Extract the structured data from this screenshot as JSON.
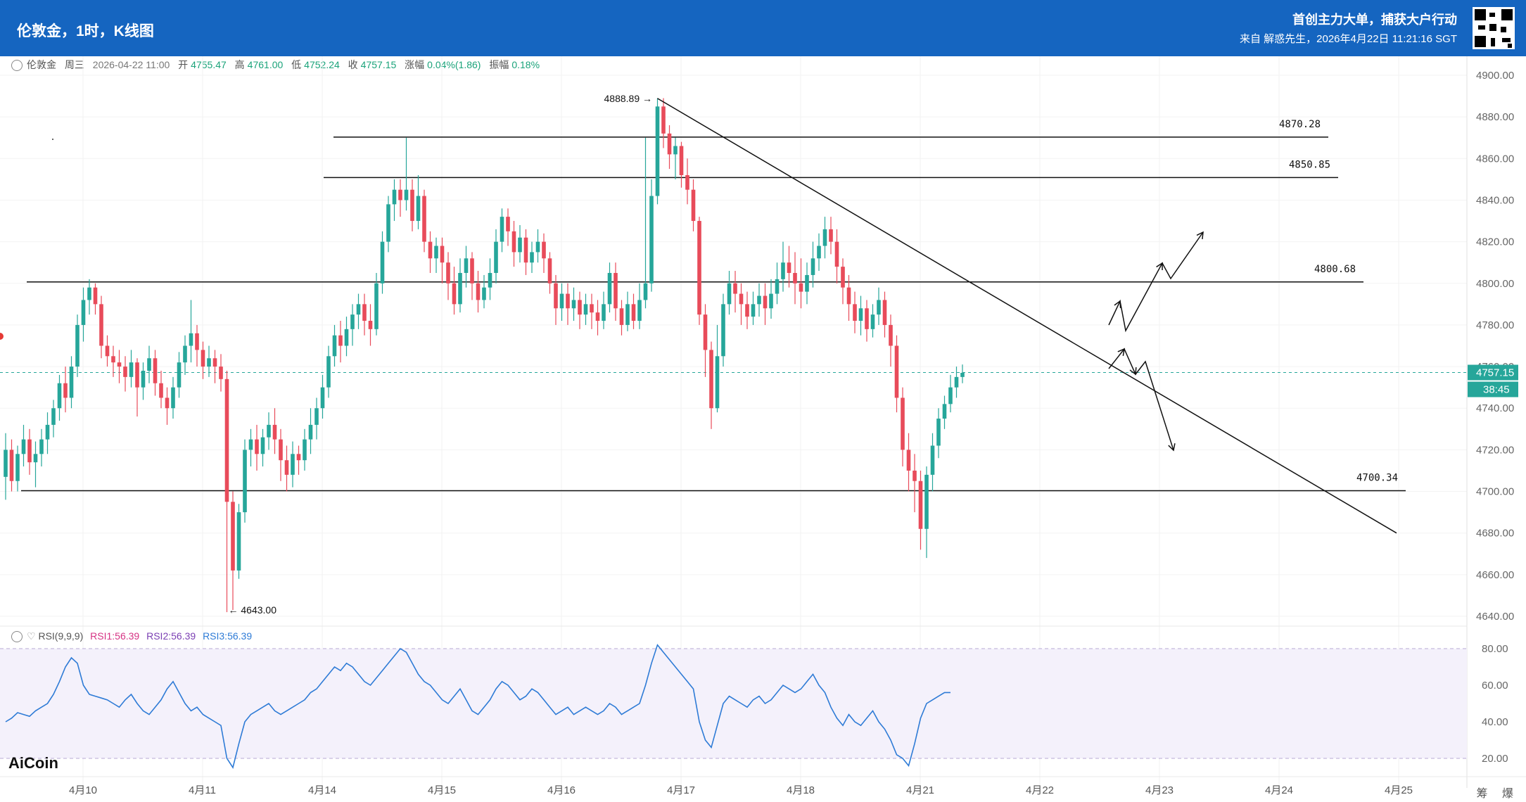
{
  "header": {
    "title": "伦敦金，1时，K线图",
    "promo": "首创主力大单，捕获大户行动",
    "source": "来自 解惑先生，2026年4月22日 11:21:16 SGT"
  },
  "ohlc": {
    "symbol": "伦敦金",
    "weekday": "周三",
    "datetime": "2026-04-22 11:00",
    "open_label": "开",
    "open": "4755.47",
    "high_label": "高",
    "high": "4761.00",
    "low_label": "低",
    "low": "4752.24",
    "close_label": "收",
    "close": "4757.15",
    "change_label": "涨幅",
    "change": "0.04%(1.86)",
    "amp_label": "振幅",
    "amp": "0.18%"
  },
  "rsi_legend": {
    "name": "RSI(9,9,9)",
    "rsi1": "RSI1:56.39",
    "rsi2": "RSI2:56.39",
    "rsi3": "RSI3:56.39"
  },
  "logo": "AiCoin",
  "bottom_right": "筹 爆",
  "colors": {
    "header_bg": "#1565c0",
    "up": "#26a69a",
    "down": "#e84b5a",
    "price_tag": "#26a69a",
    "rsi_line": "#2e7bd6",
    "rsi_band": "#f4f1fb",
    "rsi1": "#d63384",
    "rsi2": "#7b3fb3",
    "rsi3": "#2e7bd6"
  },
  "chart_data": {
    "type": "candlestick",
    "price_axis": {
      "min": 4640,
      "max": 4900,
      "ticks": [
        "4900.00",
        "4880.00",
        "4860.00",
        "4840.00",
        "4820.00",
        "4800.00",
        "4780.00",
        "4760.00",
        "4740.00",
        "4720.00",
        "4700.00",
        "4680.00",
        "4660.00",
        "4640.00"
      ]
    },
    "time_axis": {
      "ticks": [
        "4月10",
        "4月11",
        "4月14",
        "4月15",
        "4月16",
        "4月17",
        "4月18",
        "4月21",
        "4月22",
        "4月23",
        "4月24",
        "4月25"
      ]
    },
    "current_price": "4757.15",
    "countdown": "38:45",
    "extremes": {
      "high": "4888.89",
      "low": "4643.00"
    },
    "horizontal_levels": [
      {
        "label": "4870.28",
        "value": 4870.28
      },
      {
        "label": "4850.85",
        "value": 4850.85
      },
      {
        "label": "4800.68",
        "value": 4800.68
      },
      {
        "label": "4700.34",
        "value": 4700.34
      }
    ],
    "trendline": {
      "from_value": 4888.89,
      "to_value": 4680
    },
    "rsi_axis": {
      "ticks": [
        "80.00",
        "60.00",
        "40.00",
        "20.00"
      ],
      "band": [
        20,
        80
      ]
    },
    "candles": [
      [
        4707,
        4720,
        4696,
        4728
      ],
      [
        4720,
        4705,
        4700,
        4725
      ],
      [
        4705,
        4718,
        4700,
        4722
      ],
      [
        4718,
        4725,
        4712,
        4732
      ],
      [
        4725,
        4714,
        4708,
        4730
      ],
      [
        4714,
        4718,
        4702,
        4724
      ],
      [
        4718,
        4725,
        4712,
        4730
      ],
      [
        4725,
        4732,
        4718,
        4738
      ],
      [
        4732,
        4740,
        4726,
        4744
      ],
      [
        4740,
        4752,
        4734,
        4756
      ],
      [
        4752,
        4745,
        4738,
        4760
      ],
      [
        4745,
        4760,
        4740,
        4765
      ],
      [
        4760,
        4780,
        4755,
        4785
      ],
      [
        4780,
        4792,
        4772,
        4798
      ],
      [
        4792,
        4798,
        4785,
        4802
      ],
      [
        4798,
        4790,
        4785,
        4800
      ],
      [
        4790,
        4770,
        4764,
        4794
      ],
      [
        4770,
        4765,
        4760,
        4775
      ],
      [
        4765,
        4762,
        4755,
        4770
      ],
      [
        4762,
        4760,
        4752,
        4768
      ],
      [
        4760,
        4755,
        4748,
        4765
      ],
      [
        4755,
        4762,
        4750,
        4768
      ],
      [
        4762,
        4750,
        4736,
        4764
      ],
      [
        4750,
        4758,
        4744,
        4762
      ],
      [
        4758,
        4764,
        4752,
        4770
      ],
      [
        4764,
        4752,
        4746,
        4768
      ],
      [
        4752,
        4745,
        4740,
        4758
      ],
      [
        4745,
        4740,
        4732,
        4750
      ],
      [
        4740,
        4750,
        4735,
        4755
      ],
      [
        4750,
        4762,
        4745,
        4767
      ],
      [
        4762,
        4770,
        4756,
        4775
      ],
      [
        4770,
        4776,
        4762,
        4792
      ],
      [
        4776,
        4768,
        4760,
        4780
      ],
      [
        4768,
        4760,
        4754,
        4772
      ],
      [
        4760,
        4764,
        4755,
        4770
      ],
      [
        4764,
        4760,
        4752,
        4768
      ],
      [
        4760,
        4754,
        4748,
        4766
      ],
      [
        4754,
        4695,
        4642,
        4758
      ],
      [
        4695,
        4662,
        4643,
        4700
      ],
      [
        4662,
        4690,
        4658,
        4694
      ],
      [
        4690,
        4720,
        4685,
        4725
      ],
      [
        4720,
        4725,
        4712,
        4730
      ],
      [
        4725,
        4718,
        4710,
        4732
      ],
      [
        4718,
        4726,
        4712,
        4730
      ],
      [
        4726,
        4732,
        4720,
        4738
      ],
      [
        4732,
        4725,
        4718,
        4740
      ],
      [
        4725,
        4715,
        4705,
        4730
      ],
      [
        4715,
        4708,
        4700,
        4722
      ],
      [
        4708,
        4718,
        4702,
        4724
      ],
      [
        4718,
        4715,
        4708,
        4722
      ],
      [
        4715,
        4725,
        4710,
        4730
      ],
      [
        4725,
        4732,
        4718,
        4740
      ],
      [
        4732,
        4740,
        4725,
        4745
      ],
      [
        4740,
        4750,
        4735,
        4756
      ],
      [
        4750,
        4765,
        4745,
        4770
      ],
      [
        4765,
        4775,
        4760,
        4780
      ],
      [
        4775,
        4770,
        4762,
        4782
      ],
      [
        4770,
        4778,
        4765,
        4784
      ],
      [
        4778,
        4785,
        4770,
        4790
      ],
      [
        4785,
        4790,
        4778,
        4795
      ],
      [
        4790,
        4782,
        4775,
        4795
      ],
      [
        4782,
        4778,
        4770,
        4790
      ],
      [
        4778,
        4800,
        4775,
        4805
      ],
      [
        4800,
        4820,
        4795,
        4825
      ],
      [
        4820,
        4838,
        4815,
        4842
      ],
      [
        4838,
        4845,
        4830,
        4850
      ],
      [
        4845,
        4840,
        4832,
        4850
      ],
      [
        4840,
        4845,
        4835,
        4870
      ],
      [
        4845,
        4830,
        4825,
        4850
      ],
      [
        4830,
        4842,
        4826,
        4852
      ],
      [
        4842,
        4820,
        4815,
        4845
      ],
      [
        4820,
        4812,
        4805,
        4825
      ],
      [
        4812,
        4818,
        4805,
        4822
      ],
      [
        4818,
        4810,
        4800,
        4822
      ],
      [
        4810,
        4800,
        4792,
        4815
      ],
      [
        4800,
        4790,
        4785,
        4808
      ],
      [
        4790,
        4805,
        4786,
        4812
      ],
      [
        4805,
        4812,
        4798,
        4818
      ],
      [
        4812,
        4800,
        4792,
        4815
      ],
      [
        4800,
        4792,
        4786,
        4806
      ],
      [
        4792,
        4798,
        4788,
        4804
      ],
      [
        4798,
        4805,
        4792,
        4812
      ],
      [
        4805,
        4820,
        4800,
        4826
      ],
      [
        4820,
        4832,
        4815,
        4836
      ],
      [
        4832,
        4825,
        4818,
        4836
      ],
      [
        4825,
        4815,
        4808,
        4830
      ],
      [
        4815,
        4822,
        4810,
        4828
      ],
      [
        4822,
        4810,
        4804,
        4826
      ],
      [
        4810,
        4815,
        4805,
        4820
      ],
      [
        4815,
        4820,
        4810,
        4826
      ],
      [
        4820,
        4812,
        4805,
        4824
      ],
      [
        4812,
        4800,
        4795,
        4815
      ],
      [
        4800,
        4788,
        4780,
        4804
      ],
      [
        4788,
        4795,
        4782,
        4800
      ],
      [
        4795,
        4788,
        4780,
        4800
      ],
      [
        4788,
        4792,
        4782,
        4798
      ],
      [
        4792,
        4785,
        4778,
        4796
      ],
      [
        4785,
        4790,
        4780,
        4795
      ],
      [
        4790,
        4786,
        4778,
        4795
      ],
      [
        4786,
        4782,
        4775,
        4792
      ],
      [
        4782,
        4790,
        4778,
        4796
      ],
      [
        4790,
        4805,
        4786,
        4810
      ],
      [
        4805,
        4788,
        4782,
        4810
      ],
      [
        4788,
        4780,
        4775,
        4792
      ],
      [
        4780,
        4790,
        4777,
        4796
      ],
      [
        4790,
        4782,
        4778,
        4795
      ],
      [
        4782,
        4792,
        4778,
        4800
      ],
      [
        4792,
        4800,
        4788,
        4870
      ],
      [
        4800,
        4842,
        4796,
        4850
      ],
      [
        4842,
        4885,
        4838,
        4889
      ],
      [
        4885,
        4872,
        4865,
        4889
      ],
      [
        4872,
        4862,
        4855,
        4876
      ],
      [
        4862,
        4866,
        4850,
        4870
      ],
      [
        4866,
        4852,
        4846,
        4868
      ],
      [
        4852,
        4845,
        4838,
        4860
      ],
      [
        4845,
        4830,
        4825,
        4850
      ],
      [
        4830,
        4785,
        4780,
        4832
      ],
      [
        4785,
        4768,
        4755,
        4790
      ],
      [
        4768,
        4740,
        4730,
        4772
      ],
      [
        4740,
        4765,
        4738,
        4780
      ],
      [
        4765,
        4790,
        4760,
        4795
      ],
      [
        4790,
        4800,
        4785,
        4806
      ],
      [
        4800,
        4795,
        4786,
        4806
      ],
      [
        4795,
        4790,
        4780,
        4800
      ],
      [
        4790,
        4784,
        4778,
        4796
      ],
      [
        4784,
        4790,
        4780,
        4796
      ],
      [
        4790,
        4794,
        4784,
        4800
      ],
      [
        4794,
        4788,
        4780,
        4800
      ],
      [
        4788,
        4795,
        4783,
        4802
      ],
      [
        4795,
        4802,
        4790,
        4810
      ],
      [
        4802,
        4810,
        4796,
        4820
      ],
      [
        4810,
        4805,
        4798,
        4818
      ],
      [
        4805,
        4800,
        4790,
        4815
      ],
      [
        4800,
        4796,
        4788,
        4812
      ],
      [
        4796,
        4804,
        4790,
        4810
      ],
      [
        4804,
        4812,
        4798,
        4820
      ],
      [
        4812,
        4818,
        4806,
        4824
      ],
      [
        4818,
        4826,
        4812,
        4832
      ],
      [
        4826,
        4820,
        4814,
        4832
      ],
      [
        4820,
        4808,
        4800,
        4826
      ],
      [
        4808,
        4798,
        4790,
        4812
      ],
      [
        4798,
        4790,
        4782,
        4804
      ],
      [
        4790,
        4782,
        4776,
        4796
      ],
      [
        4782,
        4788,
        4775,
        4794
      ],
      [
        4788,
        4778,
        4772,
        4792
      ],
      [
        4778,
        4785,
        4774,
        4790
      ],
      [
        4785,
        4792,
        4780,
        4798
      ],
      [
        4792,
        4780,
        4774,
        4796
      ],
      [
        4780,
        4770,
        4760,
        4785
      ],
      [
        4770,
        4745,
        4738,
        4775
      ],
      [
        4745,
        4720,
        4712,
        4750
      ],
      [
        4720,
        4710,
        4700,
        4728
      ],
      [
        4710,
        4705,
        4690,
        4718
      ],
      [
        4705,
        4682,
        4672,
        4710
      ],
      [
        4682,
        4708,
        4668,
        4712
      ],
      [
        4708,
        4722,
        4700,
        4728
      ],
      [
        4722,
        4735,
        4716,
        4740
      ],
      [
        4735,
        4742,
        4730,
        4746
      ],
      [
        4742,
        4750,
        4738,
        4756
      ],
      [
        4750,
        4755,
        4745,
        4760
      ],
      [
        4755,
        4757,
        4752,
        4761
      ]
    ],
    "rsi": [
      40,
      42,
      45,
      44,
      43,
      46,
      48,
      50,
      55,
      62,
      70,
      75,
      72,
      60,
      55,
      54,
      53,
      52,
      50,
      48,
      52,
      55,
      50,
      46,
      44,
      48,
      52,
      58,
      62,
      56,
      50,
      46,
      48,
      44,
      42,
      40,
      38,
      20,
      15,
      28,
      40,
      44,
      46,
      48,
      50,
      46,
      44,
      46,
      48,
      50,
      52,
      56,
      58,
      62,
      66,
      70,
      68,
      72,
      70,
      66,
      62,
      60,
      64,
      68,
      72,
      76,
      80,
      78,
      72,
      66,
      62,
      60,
      56,
      52,
      50,
      54,
      58,
      52,
      46,
      44,
      48,
      52,
      58,
      62,
      60,
      56,
      52,
      54,
      58,
      56,
      52,
      48,
      44,
      46,
      48,
      44,
      46,
      48,
      46,
      44,
      46,
      50,
      48,
      44,
      46,
      48,
      50,
      60,
      72,
      82,
      78,
      74,
      70,
      66,
      62,
      58,
      40,
      30,
      26,
      38,
      50,
      54,
      52,
      50,
      48,
      52,
      54,
      50,
      52,
      56,
      60,
      58,
      56,
      58,
      62,
      66,
      60,
      56,
      48,
      42,
      38,
      44,
      40,
      38,
      42,
      46,
      40,
      36,
      30,
      22,
      20,
      16,
      28,
      42,
      50,
      52,
      54,
      56,
      56
    ]
  }
}
